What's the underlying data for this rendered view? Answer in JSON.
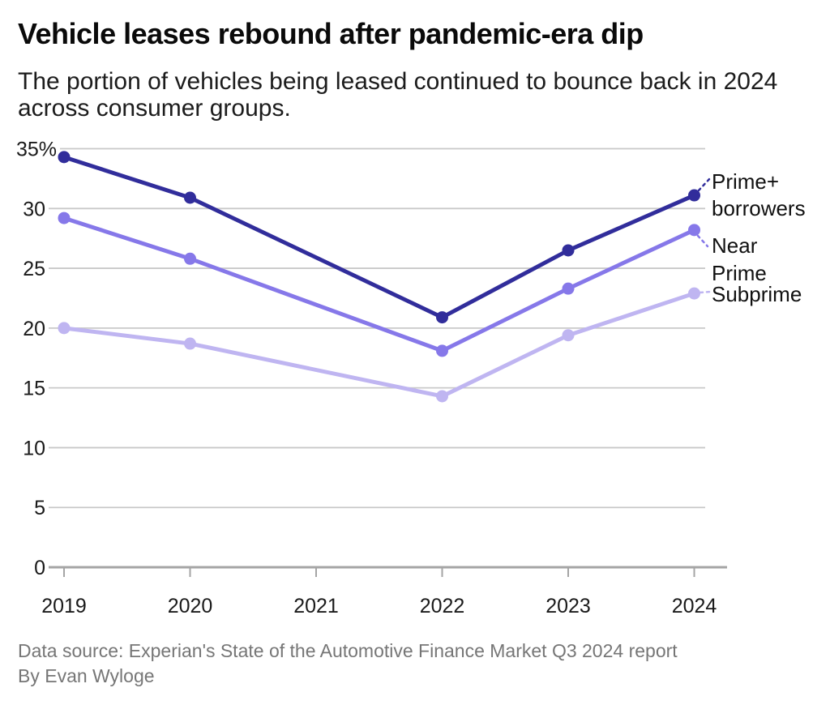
{
  "header": {
    "title": "Vehicle leases rebound after pandemic-era dip",
    "subtitle": "The portion of vehicles being leased continued to bounce back in 2024 across consumer groups."
  },
  "chart_data": {
    "type": "line",
    "title": "Vehicle leases rebound after pandemic-era dip",
    "x": [
      2019,
      2020,
      2022,
      2023,
      2024
    ],
    "x_axis_ticks": [
      "2019",
      "2020",
      "2021",
      "2022",
      "2023",
      "2024"
    ],
    "x_tick_years": [
      2019,
      2020,
      2021,
      2022,
      2023,
      2024
    ],
    "xlim": [
      2019,
      2024
    ],
    "ylim": [
      0,
      35
    ],
    "y_ticks": [
      {
        "label": "35%",
        "value": 35
      },
      {
        "label": "30",
        "value": 30
      },
      {
        "label": "25",
        "value": 25
      },
      {
        "label": "20",
        "value": 20
      },
      {
        "label": "15",
        "value": 15
      },
      {
        "label": "10",
        "value": 10
      },
      {
        "label": "5",
        "value": 5
      },
      {
        "label": "0",
        "value": 0
      }
    ],
    "unit": "%",
    "grid": true,
    "legend_position": "end-of-line-labels",
    "series": [
      {
        "id": "prime-plus",
        "name": "Prime+ borrowers",
        "label_lines": [
          "Prime+",
          "borrowers"
        ],
        "color": "#312d9b",
        "values": [
          34.3,
          30.9,
          20.9,
          26.5,
          31.1
        ]
      },
      {
        "id": "near-prime",
        "name": "Near Prime",
        "label_lines": [
          "Near",
          "Prime"
        ],
        "color": "#8678e9",
        "values": [
          29.2,
          25.8,
          18.1,
          23.3,
          28.2
        ]
      },
      {
        "id": "subprime",
        "name": "Subprime",
        "label_lines": [
          "Subprime"
        ],
        "color": "#bfb5f1",
        "values": [
          20.0,
          18.7,
          14.3,
          19.4,
          22.9
        ]
      }
    ],
    "colors": {
      "grid": "#c9c9c9",
      "axis": "#a5a5a5",
      "axis_text": "#1a1a1a",
      "label_text": "#111111"
    }
  },
  "footer": {
    "source": "Data source: Experian's State of the Automotive Finance Market Q3 2024 report",
    "byline": "By Evan Wyloge"
  }
}
